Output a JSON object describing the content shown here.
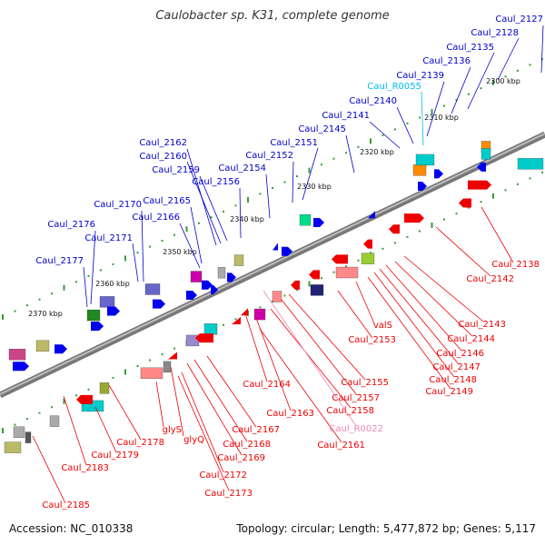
{
  "title": "Caulobacter sp. K31, complete genome",
  "footer": {
    "accession": "Accession: NC_010338",
    "topology": "Topology: circular; Length: 5,477,872 bp; Genes: 5,117"
  },
  "colors": {
    "forward_label": "#0000cc",
    "reverse_label": "#ee0000",
    "trna_label": "#00bbee",
    "ncrna_label": "#ee88bb",
    "backbone": "#888888",
    "tick": "#3a9a3a"
  },
  "kbp_marks": [
    "2300 kbp",
    "2310 kbp",
    "2320 kbp",
    "2330 kbp",
    "2340 kbp",
    "2350 kbp",
    "2360 kbp",
    "2370 kbp"
  ],
  "forward_genes": [
    "Caul_2127",
    "Caul_2128",
    "Caul_2135",
    "Caul_2136",
    "Caul_2139",
    "Caul_2140",
    "Caul_2141",
    "Caul_2145",
    "Caul_2151",
    "Caul_2152",
    "Caul_2154",
    "Caul_2156",
    "Caul_2159",
    "Caul_2160",
    "Caul_2162",
    "Caul_2165",
    "Caul_2166",
    "Caul_2170",
    "Caul_2171",
    "Caul_2176",
    "Caul_2177"
  ],
  "trna_genes": [
    "Caul_R0055"
  ],
  "reverse_genes": [
    "Caul_2138",
    "Caul_2142",
    "Caul_2143",
    "Caul_2144",
    "Caul_2146",
    "Caul_2147",
    "Caul_2148",
    "Caul_2149",
    "valS",
    "Caul_2153",
    "Caul_2155",
    "Caul_2157",
    "Caul_2158",
    "Caul_2164",
    "Caul_2163",
    "Caul_2161",
    "Caul_2167",
    "Caul_2168",
    "Caul_2169",
    "glyS",
    "glyQ",
    "Caul_2172",
    "Caul_2173",
    "Caul_2178",
    "Caul_2179",
    "Caul_2183",
    "Caul_2185"
  ],
  "ncrna_genes": [
    "Caul_R0022"
  ]
}
